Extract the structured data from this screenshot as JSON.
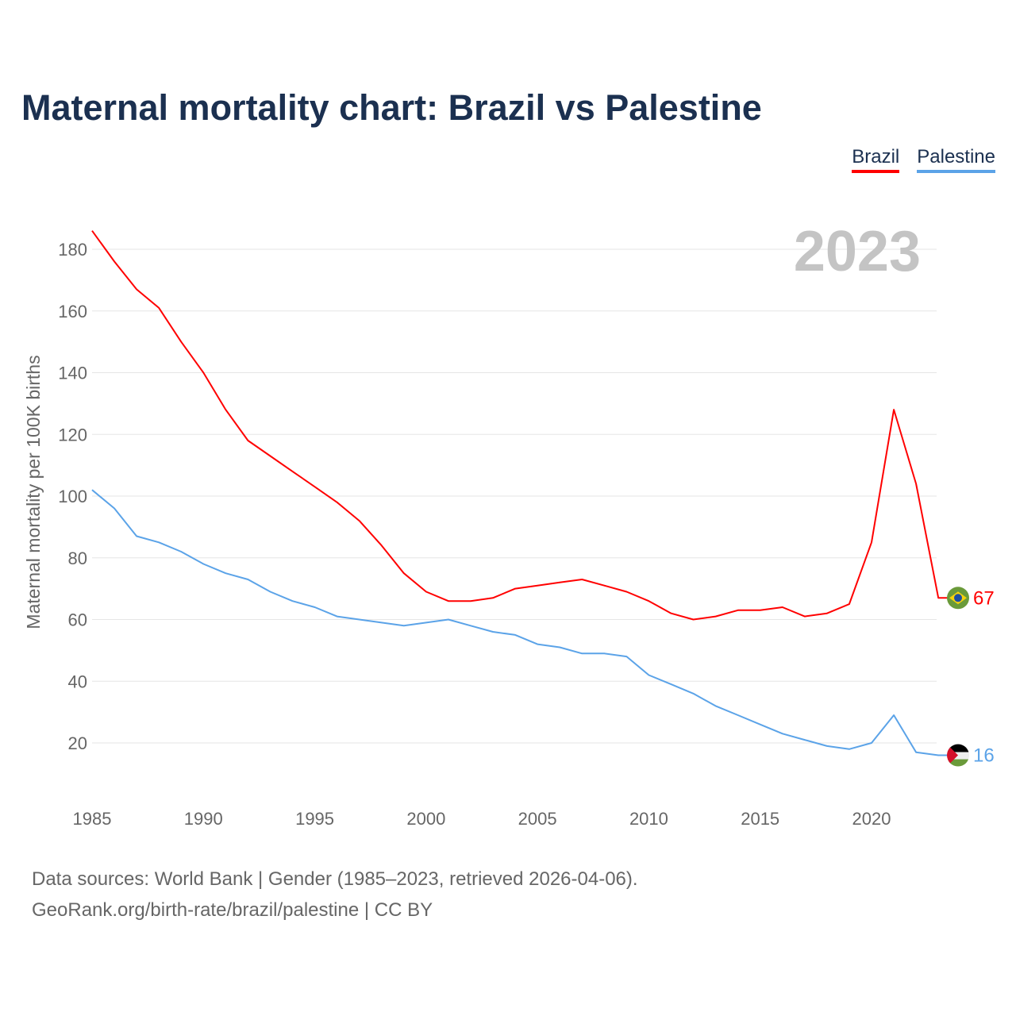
{
  "chart_data": {
    "type": "line",
    "title": "Maternal mortality chart: Brazil vs Palestine",
    "xlabel": "",
    "ylabel": "Maternal mortality per 100K births",
    "year_label": "2023",
    "ylim": [
      0,
      190
    ],
    "xlim": [
      1985,
      2023
    ],
    "yticks": [
      20,
      40,
      60,
      80,
      100,
      120,
      140,
      160,
      180
    ],
    "xticks": [
      1985,
      1990,
      1995,
      2000,
      2005,
      2010,
      2015,
      2020
    ],
    "grid": true,
    "legend_placement": "top-right",
    "x": [
      1985,
      1986,
      1987,
      1988,
      1989,
      1990,
      1991,
      1992,
      1993,
      1994,
      1995,
      1996,
      1997,
      1998,
      1999,
      2000,
      2001,
      2002,
      2003,
      2004,
      2005,
      2006,
      2007,
      2008,
      2009,
      2010,
      2011,
      2012,
      2013,
      2014,
      2015,
      2016,
      2017,
      2018,
      2019,
      2020,
      2021,
      2022,
      2023
    ],
    "series": [
      {
        "name": "Brazil",
        "color": "#ff0000",
        "end_label": "67",
        "values": [
          186,
          176,
          167,
          161,
          150,
          140,
          128,
          118,
          113,
          108,
          103,
          98,
          92,
          84,
          75,
          69,
          66,
          66,
          67,
          70,
          71,
          72,
          73,
          71,
          69,
          66,
          62,
          60,
          61,
          63,
          63,
          64,
          61,
          62,
          65,
          85,
          128,
          104,
          67
        ]
      },
      {
        "name": "Palestine",
        "color": "#5ba3e8",
        "end_label": "16",
        "values": [
          102,
          96,
          87,
          85,
          82,
          78,
          75,
          73,
          69,
          66,
          64,
          61,
          60,
          59,
          58,
          59,
          60,
          58,
          56,
          55,
          52,
          51,
          49,
          49,
          48,
          42,
          39,
          36,
          32,
          29,
          26,
          23,
          21,
          19,
          18,
          20,
          29,
          17,
          16
        ]
      }
    ]
  },
  "source": {
    "line1": "Data sources: World Bank | Gender (1985–2023, retrieved 2026-04-06).",
    "line2": "GeoRank.org/birth-rate/brazil/palestine | CC BY"
  }
}
